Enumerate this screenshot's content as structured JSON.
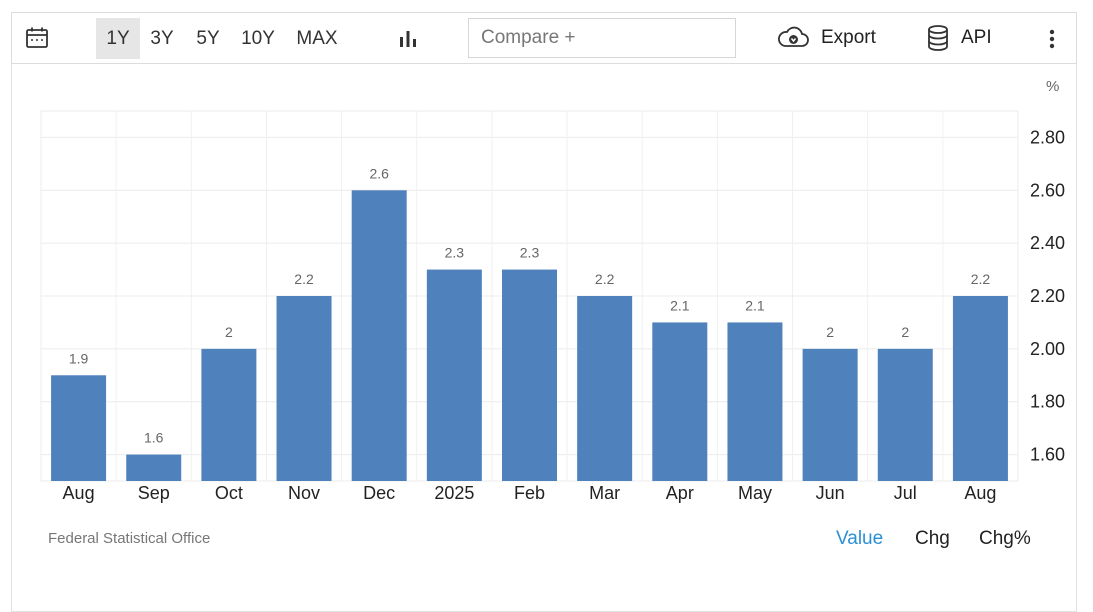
{
  "toolbar": {
    "ranges": [
      "1Y",
      "3Y",
      "5Y",
      "10Y",
      "MAX"
    ],
    "active_range": "1Y",
    "compare_placeholder": "Compare +",
    "export_label": "Export",
    "api_label": "API",
    "icons": {
      "calendar": "calendar-icon",
      "chart_type": "bar-chart-icon",
      "export": "cloud-download-icon",
      "api": "database-icon",
      "more": "more-vertical-icon"
    }
  },
  "chart_data": {
    "type": "bar",
    "categories": [
      "Aug",
      "Sep",
      "Oct",
      "Nov",
      "Dec",
      "2025",
      "Feb",
      "Mar",
      "Apr",
      "May",
      "Jun",
      "Jul",
      "Aug"
    ],
    "values": [
      1.9,
      1.6,
      2,
      2.2,
      2.6,
      2.3,
      2.3,
      2.2,
      2.1,
      2.1,
      2,
      2,
      2.2
    ],
    "value_labels": [
      "1.9",
      "1.6",
      "2",
      "2.2",
      "2.6",
      "2.3",
      "2.3",
      "2.2",
      "2.1",
      "2.1",
      "2",
      "2",
      "2.2"
    ],
    "unit": "%",
    "ylim": [
      1.5,
      2.9
    ],
    "yticks": [
      1.6,
      1.8,
      2.0,
      2.2,
      2.4,
      2.6,
      2.8
    ],
    "ytick_labels": [
      "1.60",
      "1.80",
      "2.00",
      "2.20",
      "2.40",
      "2.60",
      "2.80"
    ],
    "y_axis_side": "right",
    "grid": true,
    "bar_color": "#4f81bd"
  },
  "footer": {
    "source": "Federal Statistical Office",
    "tabs": [
      "Value",
      "Chg",
      "Chg%"
    ],
    "active_tab": "Value",
    "active_color": "#2b8fd6"
  }
}
